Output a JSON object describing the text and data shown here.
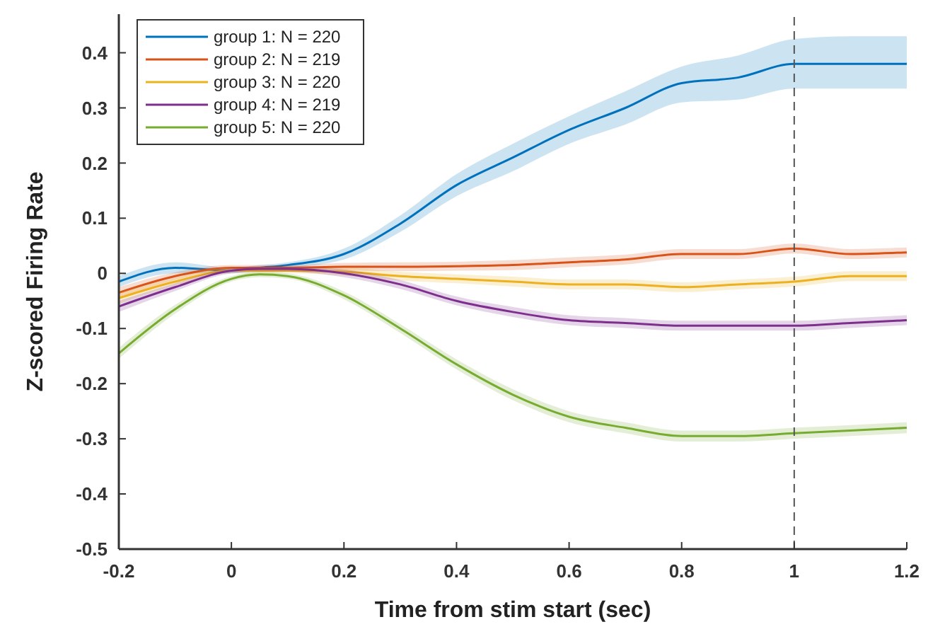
{
  "chart_data": {
    "type": "line",
    "xlabel": "Time from stim start (sec)",
    "ylabel": "Z-scored Firing Rate",
    "x": [
      -0.2,
      -0.1,
      0,
      0.05,
      0.1,
      0.2,
      0.3,
      0.4,
      0.5,
      0.6,
      0.7,
      0.8,
      0.9,
      1,
      1.1,
      1.2
    ],
    "xlim": [
      -0.2,
      1.2
    ],
    "xticks": [
      -0.2,
      0,
      0.2,
      0.4,
      0.6,
      0.8,
      1,
      1.2
    ],
    "ylim": [
      -0.5,
      0.47
    ],
    "yticks": [
      -0.5,
      -0.4,
      -0.3,
      -0.2,
      -0.1,
      0,
      0.1,
      0.2,
      0.3,
      0.4
    ],
    "legend": "top left",
    "grid": false,
    "line_style": "solid",
    "marker": "none",
    "ref_lines": [
      {
        "axis": "x",
        "value": 1,
        "color": "#555555",
        "line_style": "dashed"
      }
    ],
    "series": [
      {
        "name": "group 1: N = 220",
        "color": "#0072bd",
        "values": [
          -0.015,
          0.01,
          0.005,
          0.01,
          0.015,
          0.035,
          0.09,
          0.16,
          0.21,
          0.26,
          0.3,
          0.345,
          0.355,
          0.38,
          0.38,
          0.38
        ],
        "lower": [
          -0.025,
          0.0,
          0.0,
          0.005,
          0.01,
          0.025,
          0.075,
          0.14,
          0.185,
          0.235,
          0.27,
          0.31,
          0.315,
          0.335,
          0.335,
          0.335
        ],
        "upper": [
          -0.005,
          0.02,
          0.01,
          0.015,
          0.02,
          0.045,
          0.105,
          0.18,
          0.235,
          0.285,
          0.33,
          0.375,
          0.395,
          0.425,
          0.43,
          0.43
        ]
      },
      {
        "name": "group 2: N = 219",
        "color": "#d95319",
        "values": [
          -0.035,
          -0.005,
          0.01,
          0.01,
          0.01,
          0.012,
          0.012,
          0.013,
          0.015,
          0.02,
          0.025,
          0.035,
          0.035,
          0.045,
          0.035,
          0.038
        ],
        "lower": [
          -0.045,
          -0.012,
          0.005,
          0.005,
          0.005,
          0.005,
          0.004,
          0.005,
          0.006,
          0.011,
          0.016,
          0.026,
          0.026,
          0.036,
          0.026,
          0.029
        ],
        "upper": [
          -0.025,
          0.002,
          0.015,
          0.015,
          0.015,
          0.019,
          0.02,
          0.021,
          0.024,
          0.029,
          0.034,
          0.044,
          0.044,
          0.054,
          0.044,
          0.047
        ]
      },
      {
        "name": "group 3: N = 220",
        "color": "#edb120",
        "values": [
          -0.045,
          -0.015,
          0.005,
          0.005,
          0.005,
          0.003,
          -0.005,
          -0.01,
          -0.015,
          -0.02,
          -0.02,
          -0.025,
          -0.02,
          -0.015,
          -0.005,
          -0.005
        ],
        "lower": [
          -0.055,
          -0.022,
          0.0,
          0.0,
          0.0,
          -0.004,
          -0.013,
          -0.018,
          -0.024,
          -0.029,
          -0.029,
          -0.034,
          -0.029,
          -0.024,
          -0.014,
          -0.014
        ],
        "upper": [
          -0.035,
          -0.008,
          0.01,
          0.01,
          0.01,
          0.01,
          0.003,
          -0.002,
          -0.006,
          -0.011,
          -0.011,
          -0.016,
          -0.011,
          -0.006,
          0.004,
          0.004
        ]
      },
      {
        "name": "group 4: N = 219",
        "color": "#7e2f8e",
        "values": [
          -0.06,
          -0.025,
          0.005,
          0.008,
          0.008,
          0.0,
          -0.02,
          -0.05,
          -0.07,
          -0.085,
          -0.09,
          -0.095,
          -0.095,
          -0.095,
          -0.09,
          -0.085
        ],
        "lower": [
          -0.07,
          -0.032,
          0.0,
          0.003,
          0.003,
          -0.007,
          -0.028,
          -0.058,
          -0.079,
          -0.094,
          -0.099,
          -0.104,
          -0.104,
          -0.104,
          -0.099,
          -0.094
        ],
        "upper": [
          -0.05,
          -0.018,
          0.01,
          0.013,
          0.013,
          0.007,
          -0.012,
          -0.042,
          -0.061,
          -0.076,
          -0.081,
          -0.086,
          -0.086,
          -0.086,
          -0.081,
          -0.076
        ]
      },
      {
        "name": "group 5: N = 220",
        "color": "#77ac30",
        "values": [
          -0.145,
          -0.065,
          -0.01,
          -0.002,
          -0.005,
          -0.04,
          -0.1,
          -0.165,
          -0.22,
          -0.26,
          -0.28,
          -0.295,
          -0.295,
          -0.29,
          -0.285,
          -0.28
        ],
        "lower": [
          -0.155,
          -0.073,
          -0.015,
          -0.007,
          -0.01,
          -0.047,
          -0.108,
          -0.174,
          -0.23,
          -0.27,
          -0.29,
          -0.305,
          -0.305,
          -0.3,
          -0.295,
          -0.29
        ],
        "upper": [
          -0.135,
          -0.057,
          -0.005,
          0.003,
          0.0,
          -0.033,
          -0.092,
          -0.156,
          -0.21,
          -0.25,
          -0.27,
          -0.285,
          -0.285,
          -0.28,
          -0.275,
          -0.27
        ]
      }
    ]
  }
}
